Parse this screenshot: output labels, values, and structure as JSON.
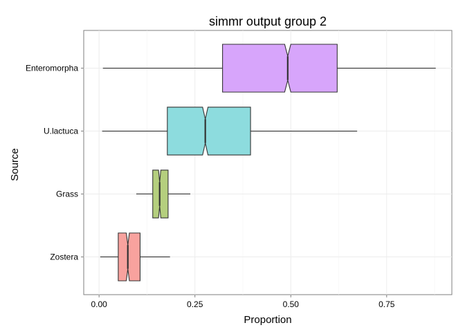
{
  "chart_data": {
    "type": "boxplot",
    "orientation": "horizontal",
    "notched": true,
    "title": "simmr output group 2",
    "xlabel": "Proportion",
    "ylabel": "Source",
    "xlim": [
      -0.04,
      0.92
    ],
    "x_ticks": [
      0.0,
      0.25,
      0.5,
      0.75
    ],
    "x_tick_labels": [
      "0.00",
      "0.25",
      "0.50",
      "0.75"
    ],
    "grid": true,
    "legend": "none",
    "categories": [
      "Zostera",
      "Grass",
      "U.lactuca",
      "Enteromorpha"
    ],
    "boxes": [
      {
        "name": "Zostera",
        "whisker_low": 0.003,
        "q1": 0.05,
        "median": 0.075,
        "q3": 0.107,
        "whisker_high": 0.185,
        "notch_low": 0.071,
        "notch_high": 0.079,
        "color": "#F8A29E"
      },
      {
        "name": "Grass",
        "whisker_low": 0.097,
        "q1": 0.14,
        "median": 0.158,
        "q3": 0.18,
        "whisker_high": 0.238,
        "notch_low": 0.155,
        "notch_high": 0.161,
        "color": "#B5CF7E"
      },
      {
        "name": "U.lactuca",
        "whisker_low": 0.008,
        "q1": 0.178,
        "median": 0.277,
        "q3": 0.395,
        "whisker_high": 0.673,
        "notch_low": 0.27,
        "notch_high": 0.284,
        "color": "#8DDCDE"
      },
      {
        "name": "Enteromorpha",
        "whisker_low": 0.01,
        "q1": 0.322,
        "median": 0.492,
        "q3": 0.621,
        "whisker_high": 0.878,
        "notch_low": 0.484,
        "notch_high": 0.5,
        "color": "#D7A5FB"
      }
    ]
  }
}
